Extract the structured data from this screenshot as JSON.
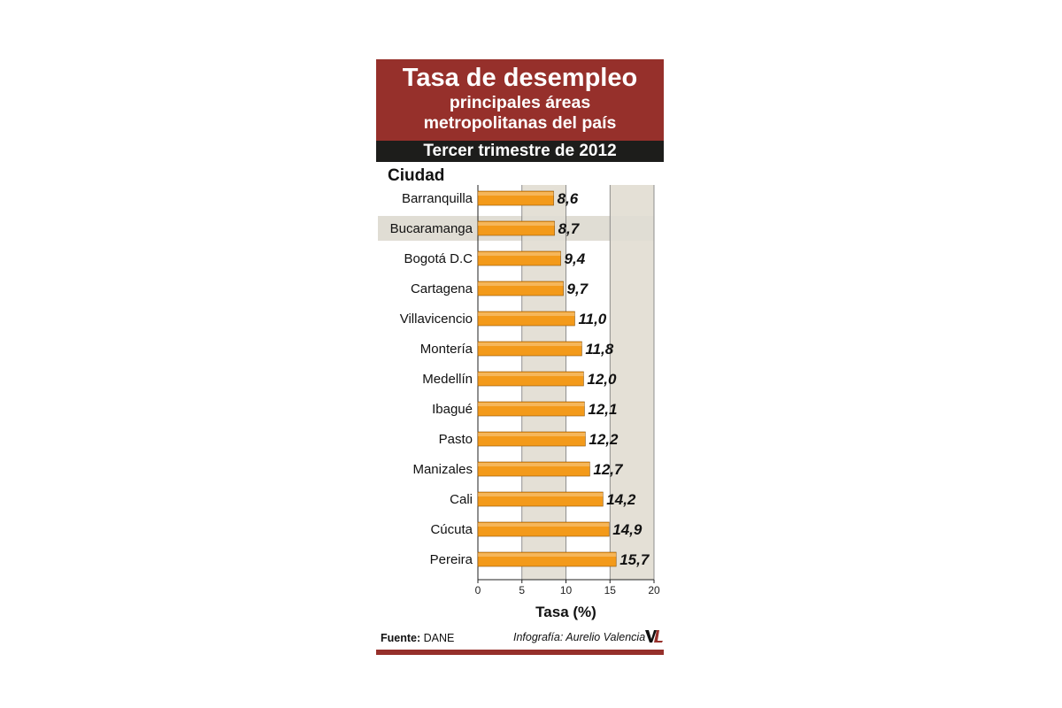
{
  "header": {
    "title": "Tasa de desempleo",
    "subtitle_line1": "principales áreas",
    "subtitle_line2": "metropolitanas del país",
    "period": "Tercer trimestre de 2012"
  },
  "footer": {
    "source_prefix": "Fuente:",
    "source_value": "DANE",
    "credit": "Infografía: Aurelio Valencia"
  },
  "colors": {
    "header_bg": "#96302b",
    "subheader_bg": "#1d1d1b",
    "bar_fill": "#f39a1a",
    "plot_band": "#e4e0d6",
    "highlight_row": "#e0ddd4"
  },
  "chart_data": {
    "type": "bar",
    "orientation": "horizontal",
    "title": "Tasa de desempleo",
    "subtitle": "principales áreas metropolitanas del país — Tercer trimestre de 2012",
    "ylabel": "Ciudad",
    "xlabel": "Tasa (%)",
    "xlim": [
      0,
      20
    ],
    "xticks": [
      "0",
      "5",
      "10",
      "15",
      "20"
    ],
    "categories": [
      "Barranquilla",
      "Bucaramanga",
      "Bogotá D.C",
      "Cartagena",
      "Villavicencio",
      "Montería",
      "Medellín",
      "Ibagué",
      "Pasto",
      "Manizales",
      "Cali",
      "Cúcuta",
      "Pereira"
    ],
    "values": [
      8.6,
      8.7,
      9.4,
      9.7,
      11.0,
      11.8,
      12.0,
      12.1,
      12.2,
      12.7,
      14.2,
      14.9,
      15.7
    ],
    "value_labels": [
      "8,6",
      "8,7",
      "9,4",
      "9,7",
      "11,0",
      "11,8",
      "12,0",
      "12,1",
      "12,2",
      "12,7",
      "14,2",
      "14,9",
      "15,7"
    ],
    "highlighted_category": "Bucaramanga",
    "grid": true
  }
}
